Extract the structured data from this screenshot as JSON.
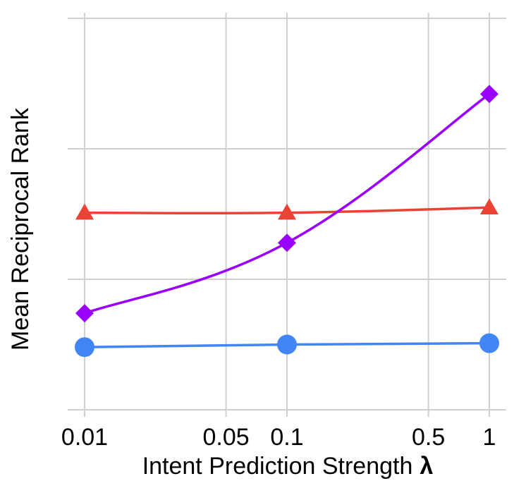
{
  "chart_data": {
    "type": "line",
    "title": "",
    "xlabel": "Intent Prediction Strength",
    "xlabel_symbol": "λ",
    "ylabel": "Mean Reciprocal Rank",
    "x_scale": "log",
    "x": [
      0.01,
      0.1,
      1
    ],
    "x_ticks": [
      0.01,
      0.05,
      0.1,
      0.5,
      1
    ],
    "x_tick_labels": [
      "0.01",
      "0.05",
      "0.1",
      "0.5",
      "1"
    ],
    "xlim": [
      0.01,
      1
    ],
    "ylim": [
      0,
      3
    ],
    "y_gridlines": [
      0,
      1,
      2,
      3
    ],
    "y_tick_labels_shown": false,
    "grid": true,
    "series": [
      {
        "name": "triangle series",
        "marker": "triangle",
        "color": "#ea4335",
        "values": [
          1.51,
          1.51,
          1.55
        ]
      },
      {
        "name": "diamond series",
        "marker": "diamond",
        "color": "#9900ff",
        "values": [
          0.74,
          1.28,
          2.42
        ]
      },
      {
        "name": "circle series",
        "marker": "circle",
        "color": "#4285f4",
        "values": [
          0.48,
          0.5,
          0.51
        ]
      }
    ]
  }
}
